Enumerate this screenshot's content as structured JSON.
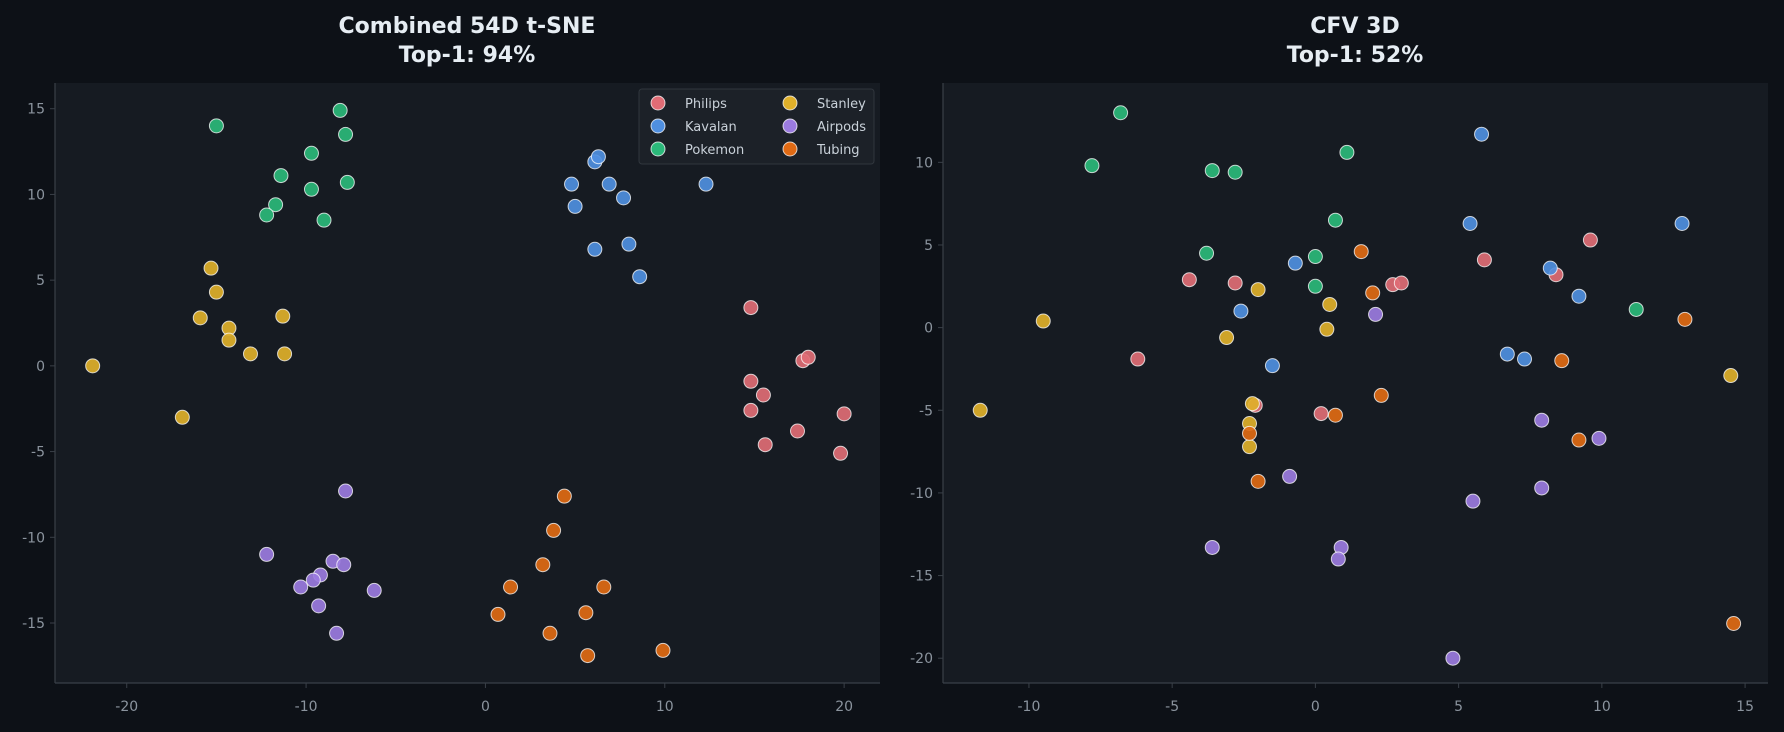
{
  "colors": {
    "background": "#0d1117",
    "plot_area": "#161b22",
    "Philips": "#e06c75",
    "Kavalan": "#4f8fe0",
    "Pokemon": "#2bb87a",
    "Stanley": "#e0b02a",
    "Airpods": "#9b7be0",
    "Tubing": "#e06a14"
  },
  "chart_data": [
    {
      "type": "scatter",
      "title": [
        "Combined 54D  t-SNE",
        "Top-1: 94%"
      ],
      "xlabel": "",
      "ylabel": "",
      "xlim": [
        -24,
        22
      ],
      "ylim": [
        -18.5,
        16.5
      ],
      "xticks": [
        -20,
        -10,
        0,
        10,
        20
      ],
      "yticks": [
        -15,
        -10,
        -5,
        0,
        5,
        10,
        15
      ],
      "grid": false,
      "legend": {
        "placement": "top-right",
        "columns": 2,
        "entries": [
          "Philips",
          "Kavalan",
          "Pokemon",
          "Stanley",
          "Airpods",
          "Tubing"
        ]
      },
      "series": [
        {
          "name": "Philips",
          "points": [
            [
              14.8,
              3.4
            ],
            [
              14.8,
              -0.9
            ],
            [
              15.5,
              -1.7
            ],
            [
              14.8,
              -2.6
            ],
            [
              15.6,
              -4.6
            ],
            [
              17.7,
              0.3
            ],
            [
              18.0,
              0.5
            ],
            [
              17.4,
              -3.8
            ],
            [
              20.0,
              -2.8
            ],
            [
              19.8,
              -5.1
            ]
          ]
        },
        {
          "name": "Kavalan",
          "points": [
            [
              4.8,
              10.6
            ],
            [
              5.0,
              9.3
            ],
            [
              6.1,
              11.9
            ],
            [
              6.3,
              12.2
            ],
            [
              6.9,
              10.6
            ],
            [
              7.7,
              9.8
            ],
            [
              6.1,
              6.8
            ],
            [
              8.0,
              7.1
            ],
            [
              8.6,
              5.2
            ],
            [
              12.3,
              10.6
            ]
          ]
        },
        {
          "name": "Pokemon",
          "points": [
            [
              -15.0,
              14.0
            ],
            [
              -8.1,
              14.9
            ],
            [
              -7.8,
              13.5
            ],
            [
              -9.7,
              12.4
            ],
            [
              -11.4,
              11.1
            ],
            [
              -7.7,
              10.7
            ],
            [
              -9.7,
              10.3
            ],
            [
              -11.7,
              9.4
            ],
            [
              -12.2,
              8.8
            ],
            [
              -9.0,
              8.5
            ]
          ]
        },
        {
          "name": "Stanley",
          "points": [
            [
              -15.3,
              5.7
            ],
            [
              -15.0,
              4.3
            ],
            [
              -14.3,
              2.2
            ],
            [
              -15.9,
              2.8
            ],
            [
              -14.3,
              1.5
            ],
            [
              -11.3,
              2.9
            ],
            [
              -13.1,
              0.7
            ],
            [
              -11.2,
              0.7
            ],
            [
              -21.9,
              0.0
            ],
            [
              -16.9,
              -3.0
            ]
          ]
        },
        {
          "name": "Airpods",
          "points": [
            [
              -7.8,
              -7.3
            ],
            [
              -12.2,
              -11.0
            ],
            [
              -8.5,
              -11.4
            ],
            [
              -7.9,
              -11.6
            ],
            [
              -9.2,
              -12.2
            ],
            [
              -9.6,
              -12.5
            ],
            [
              -10.3,
              -12.9
            ],
            [
              -6.2,
              -13.1
            ],
            [
              -9.3,
              -14.0
            ],
            [
              -8.3,
              -15.6
            ]
          ]
        },
        {
          "name": "Tubing",
          "points": [
            [
              4.4,
              -7.6
            ],
            [
              3.8,
              -9.6
            ],
            [
              3.2,
              -11.6
            ],
            [
              1.4,
              -12.9
            ],
            [
              6.6,
              -12.9
            ],
            [
              0.7,
              -14.5
            ],
            [
              5.6,
              -14.4
            ],
            [
              3.6,
              -15.6
            ],
            [
              5.7,
              -16.9
            ],
            [
              9.9,
              -16.6
            ]
          ]
        }
      ]
    },
    {
      "type": "scatter",
      "title": [
        "CFV 3D",
        "Top-1: 52%"
      ],
      "xlabel": "",
      "ylabel": "",
      "xlim": [
        -13,
        15.8
      ],
      "ylim": [
        -21.5,
        14.8
      ],
      "xticks": [
        -10,
        -5,
        0,
        5,
        10,
        15
      ],
      "yticks": [
        -20,
        -15,
        -10,
        -5,
        0,
        5,
        10
      ],
      "grid": false,
      "series": [
        {
          "name": "Philips",
          "points": [
            [
              -4.4,
              2.9
            ],
            [
              -2.8,
              2.7
            ],
            [
              -6.2,
              -1.9
            ],
            [
              -2.1,
              -4.7
            ],
            [
              0.2,
              -5.2
            ],
            [
              2.7,
              2.6
            ],
            [
              3.0,
              2.7
            ],
            [
              5.9,
              4.1
            ],
            [
              8.4,
              3.2
            ],
            [
              9.6,
              5.3
            ]
          ]
        },
        {
          "name": "Kavalan",
          "points": [
            [
              5.8,
              11.7
            ],
            [
              12.8,
              6.3
            ],
            [
              5.4,
              6.3
            ],
            [
              -0.7,
              3.9
            ],
            [
              8.2,
              3.6
            ],
            [
              -2.6,
              1.0
            ],
            [
              9.2,
              1.9
            ],
            [
              -1.5,
              -2.3
            ],
            [
              6.7,
              -1.6
            ],
            [
              7.3,
              -1.9
            ]
          ]
        },
        {
          "name": "Pokemon",
          "points": [
            [
              -6.8,
              13.0
            ],
            [
              -7.8,
              9.8
            ],
            [
              -3.6,
              9.5
            ],
            [
              -2.8,
              9.4
            ],
            [
              1.1,
              10.6
            ],
            [
              0.7,
              6.5
            ],
            [
              -3.8,
              4.5
            ],
            [
              0.0,
              4.3
            ],
            [
              0.0,
              2.5
            ],
            [
              11.2,
              1.1
            ]
          ]
        },
        {
          "name": "Stanley",
          "points": [
            [
              -9.5,
              0.4
            ],
            [
              -11.7,
              -5.0
            ],
            [
              -2.0,
              2.3
            ],
            [
              0.5,
              1.4
            ],
            [
              0.4,
              -0.1
            ],
            [
              -3.1,
              -0.6
            ],
            [
              -2.2,
              -4.6
            ],
            [
              -2.3,
              -5.8
            ],
            [
              -2.3,
              -7.2
            ],
            [
              14.5,
              -2.9
            ]
          ]
        },
        {
          "name": "Airpods",
          "points": [
            [
              2.1,
              0.8
            ],
            [
              7.9,
              -5.6
            ],
            [
              9.9,
              -6.7
            ],
            [
              -0.9,
              -9.0
            ],
            [
              5.5,
              -10.5
            ],
            [
              7.9,
              -9.7
            ],
            [
              -3.6,
              -13.3
            ],
            [
              0.9,
              -13.3
            ],
            [
              0.8,
              -14.0
            ],
            [
              4.8,
              -20.0
            ]
          ]
        },
        {
          "name": "Tubing",
          "points": [
            [
              1.6,
              4.6
            ],
            [
              2.0,
              2.1
            ],
            [
              12.9,
              0.5
            ],
            [
              8.6,
              -2.0
            ],
            [
              2.3,
              -4.1
            ],
            [
              0.7,
              -5.3
            ],
            [
              9.2,
              -6.8
            ],
            [
              -2.3,
              -6.4
            ],
            [
              -2.0,
              -9.3
            ],
            [
              14.6,
              -17.9
            ]
          ]
        }
      ]
    }
  ]
}
